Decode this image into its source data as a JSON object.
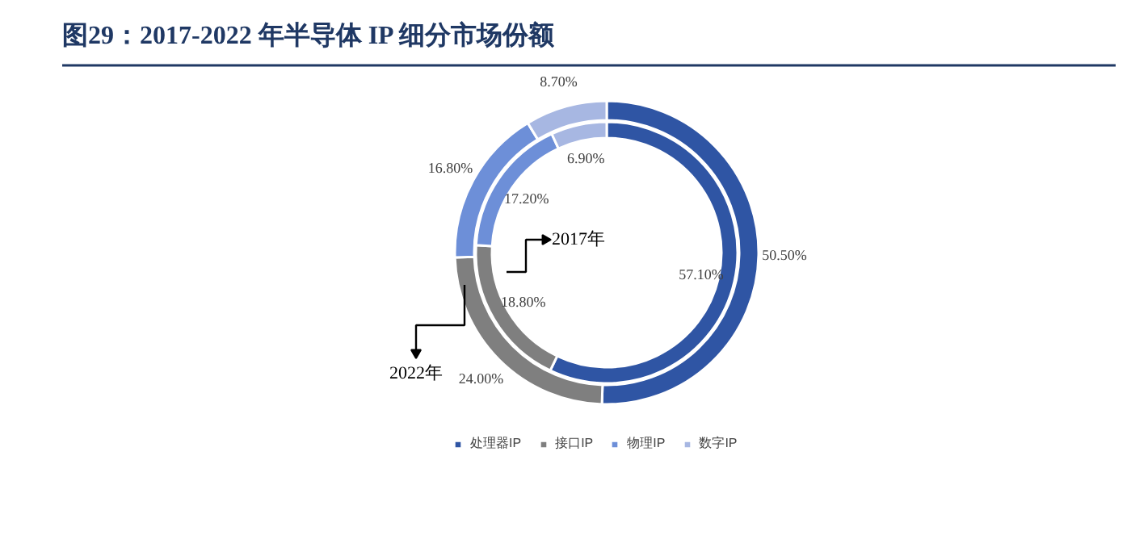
{
  "chart_data": {
    "type": "donut",
    "title": "图29：2017-2022 年半导体 IP 细分市场份额",
    "categories": [
      "处理器IP",
      "接口IP",
      "物理IP",
      "数字IP"
    ],
    "colors": [
      "#2f55a4",
      "#7f7f7f",
      "#6d8fd8",
      "#a7b7e2"
    ],
    "series": [
      {
        "name": "2017年",
        "values": [
          57.1,
          18.8,
          17.2,
          6.9
        ],
        "value_labels": [
          "57.10%",
          "18.80%",
          "17.20%",
          "6.90%"
        ]
      },
      {
        "name": "2022年",
        "values": [
          50.5,
          24.0,
          16.8,
          8.7
        ],
        "value_labels": [
          "50.50%",
          "24.00%",
          "16.80%",
          "8.70%"
        ]
      }
    ],
    "legend": "bottom"
  }
}
